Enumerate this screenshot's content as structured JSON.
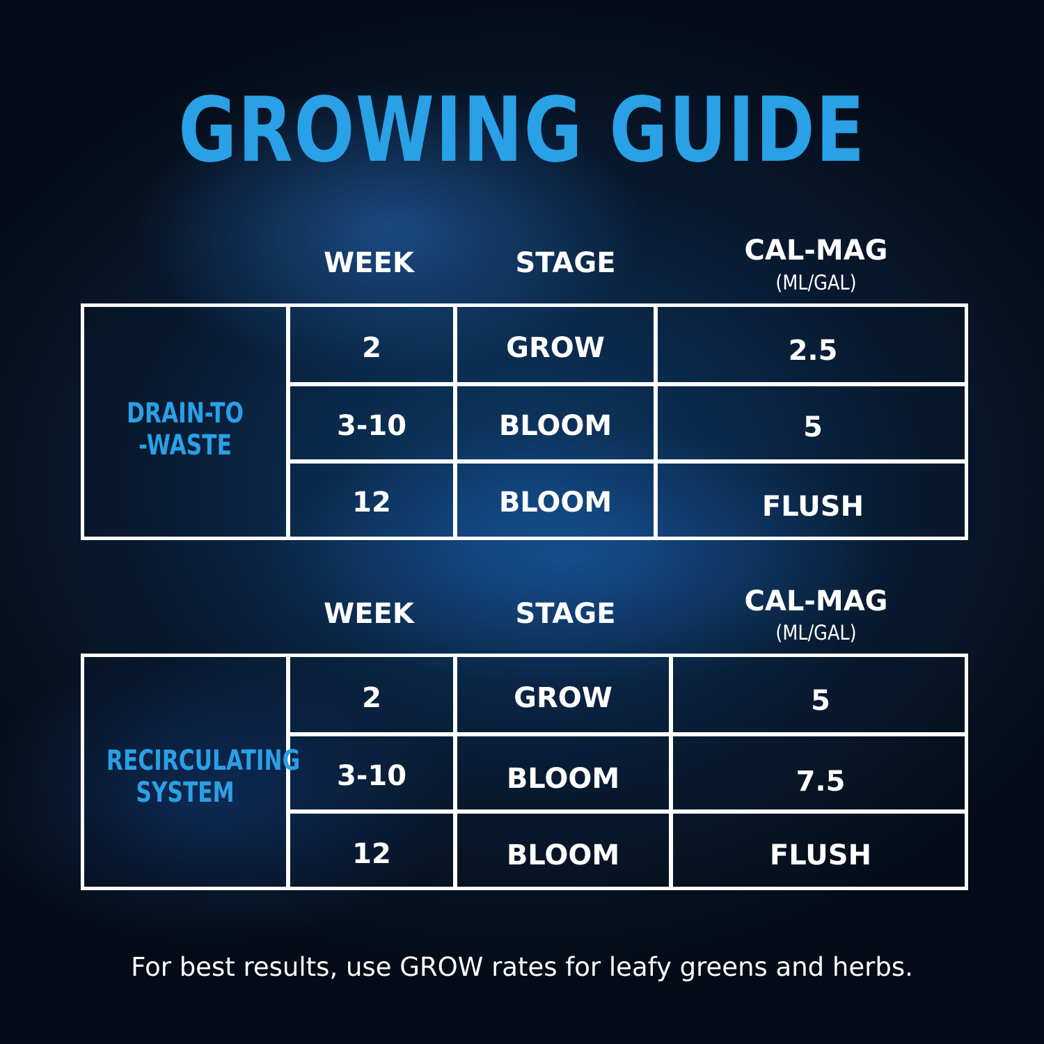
{
  "title": "GROWING GUIDE",
  "headers": {
    "week": "WEEK",
    "stage": "STAGE",
    "calmag": "CAL-MAG",
    "unit": "(ML/GAL)"
  },
  "tables": [
    {
      "system": [
        "DRAIN-TO",
        "-WASTE"
      ],
      "rows": [
        {
          "week": "2",
          "stage": "GROW",
          "calmag": "2.5"
        },
        {
          "week": "3-10",
          "stage": "BLOOM",
          "calmag": "5"
        },
        {
          "week": "12",
          "stage": "BLOOM",
          "calmag": "FLUSH"
        }
      ]
    },
    {
      "system": [
        "RECIRCULATING",
        "SYSTEM"
      ],
      "rows": [
        {
          "week": "2",
          "stage": "GROW",
          "calmag": "5"
        },
        {
          "week": "3-10",
          "stage": "BLOOM",
          "calmag": "7.5"
        },
        {
          "week": "12",
          "stage": "BLOOM",
          "calmag": "FLUSH"
        }
      ]
    }
  ],
  "note": "For best results, use GROW rates for leafy greens and herbs.",
  "colors": {
    "accent": "#2aa0e6",
    "text": "#ffffff"
  }
}
